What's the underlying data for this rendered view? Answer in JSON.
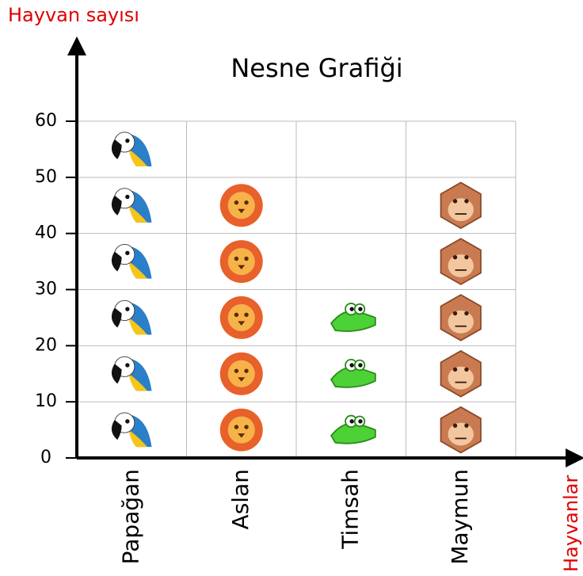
{
  "chart_data": {
    "type": "pictograph",
    "title": "Nesne Grafiği",
    "y_label": "Hayvan sayısı",
    "x_label": "Hayvanlar",
    "categories": [
      "Papağan",
      "Aslan",
      "Timsah",
      "Maymun"
    ],
    "values": [
      60,
      50,
      30,
      50
    ],
    "colors": [
      "#2a7fc8",
      "#e8602a",
      "#4cd137",
      "#c97a50"
    ],
    "ylim": [
      0,
      60
    ],
    "yticks": [
      0,
      10,
      20,
      30,
      40,
      50,
      60
    ],
    "grid": true
  }
}
